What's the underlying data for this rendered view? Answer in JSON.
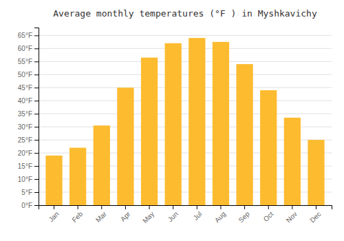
{
  "chart_data": {
    "type": "bar",
    "title": "Average monthly temperatures (°F ) in Myshkavichy",
    "categories": [
      "Jan",
      "Feb",
      "Mar",
      "Apr",
      "May",
      "Jun",
      "Jul",
      "Aug",
      "Sep",
      "Oct",
      "Nov",
      "Dec"
    ],
    "values": [
      19,
      22,
      30.5,
      45,
      56.5,
      62,
      64,
      62.5,
      54,
      44,
      33.5,
      25
    ],
    "color": "#FDBB2F",
    "ylim": [
      0,
      68
    ],
    "yticks": [
      {
        "value": 0,
        "label": "0°F"
      },
      {
        "value": 5,
        "label": "5°F"
      },
      {
        "value": 10,
        "label": "10°F"
      },
      {
        "value": 15,
        "label": "15°F"
      },
      {
        "value": 20,
        "label": "20°F"
      },
      {
        "value": 25,
        "label": "25°F"
      },
      {
        "value": 30,
        "label": "30°F"
      },
      {
        "value": 35,
        "label": "35°F"
      },
      {
        "value": 40,
        "label": "40°F"
      },
      {
        "value": 45,
        "label": "45°F"
      },
      {
        "value": 50,
        "label": "50°F"
      },
      {
        "value": 55,
        "label": "55°F"
      },
      {
        "value": 60,
        "label": "60°F"
      },
      {
        "value": 65,
        "label": "65°F"
      }
    ],
    "grid": true
  }
}
